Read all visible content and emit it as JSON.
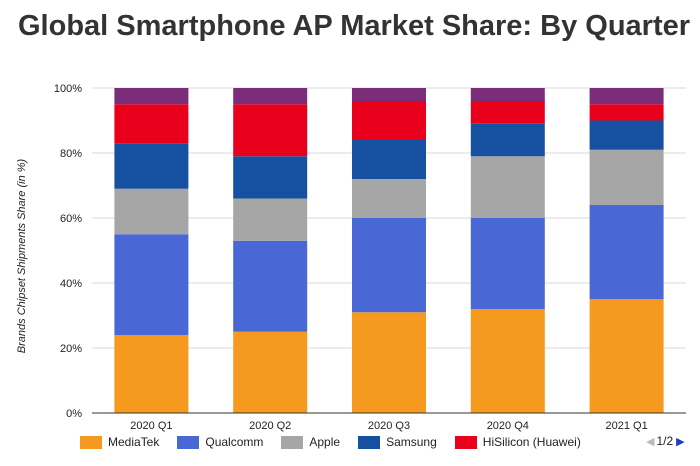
{
  "title": "Global Smartphone AP Market Share: By Quarter",
  "chart_data": {
    "type": "bar",
    "stacked": true,
    "categories": [
      "2020 Q1",
      "2020 Q2",
      "2020 Q3",
      "2020 Q4",
      "2021 Q1"
    ],
    "series": [
      {
        "name": "MediaTek",
        "color": "#f59a1e",
        "values": [
          24,
          25,
          31,
          32,
          35
        ]
      },
      {
        "name": "Qualcomm",
        "color": "#4a67d6",
        "values": [
          31,
          28,
          29,
          28,
          29
        ]
      },
      {
        "name": "Apple",
        "color": "#a6a6a6",
        "values": [
          14,
          13,
          12,
          19,
          17
        ]
      },
      {
        "name": "Samsung",
        "color": "#1650a1",
        "values": [
          14,
          13,
          12,
          10,
          9
        ]
      },
      {
        "name": "HiSilicon (Huawei)",
        "color": "#e8001c",
        "values": [
          12,
          16,
          12,
          7,
          5
        ]
      },
      {
        "color": "#7b2d7a",
        "values": [
          5,
          5,
          4,
          4,
          5
        ]
      }
    ],
    "ylabel": "Brands Chipset Shipments Share (in %)",
    "xlabel": "",
    "ylim": [
      0,
      100
    ],
    "yticks": [
      "0%",
      "20%",
      "40%",
      "60%",
      "80%",
      "100%"
    ],
    "grid": true,
    "legend_position": "bottom"
  },
  "legend_pager": {
    "prev": "◀",
    "text": "1/2",
    "next": "▶"
  }
}
